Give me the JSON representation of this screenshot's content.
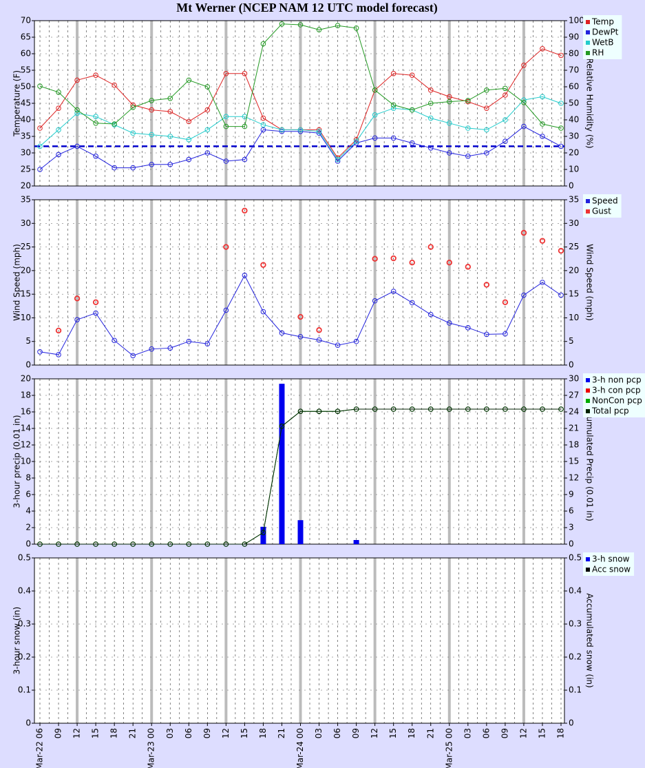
{
  "chart_data": [
    {
      "type": "line",
      "title": "Mt Werner (NCEP NAM 12 UTC model forecast)",
      "ylabel": "Temperature (F)",
      "y2label": "Relative Humidity (%)",
      "ylim": [
        20,
        70
      ],
      "yticks": [
        20,
        25,
        30,
        35,
        40,
        45,
        50,
        55,
        60,
        65,
        70
      ],
      "y2lim": [
        0,
        100
      ],
      "y2ticks": [
        0,
        10,
        20,
        30,
        40,
        50,
        60,
        70,
        80,
        90,
        100
      ],
      "reference_line": {
        "value": 32,
        "color": "#0000cc"
      },
      "series": [
        {
          "name": "Temp",
          "color": "#dd2222",
          "mark": "line",
          "values": [
            37.5,
            43.5,
            52,
            53.5,
            50.5,
            44.5,
            43,
            42.5,
            39.5,
            43,
            54,
            54,
            40.5,
            37,
            37,
            37,
            28.5,
            34,
            49,
            54,
            53.5,
            49,
            47,
            45.5,
            43.5,
            47.5,
            56.5,
            61.5,
            59.5
          ]
        },
        {
          "name": "DewPt",
          "color": "#2222dd",
          "mark": "line",
          "values": [
            25,
            29.5,
            32,
            29,
            25.5,
            25.5,
            26.5,
            26.5,
            28,
            30,
            27.5,
            28,
            37,
            36.5,
            36.5,
            36,
            27.5,
            33,
            34.5,
            34.5,
            33,
            31.5,
            30,
            29,
            30,
            33.5,
            38,
            35,
            32
          ]
        },
        {
          "name": "WetB",
          "color": "#22cccc",
          "mark": "line",
          "values": [
            32,
            37,
            42,
            41,
            38.5,
            36,
            35.5,
            35,
            34,
            37,
            41,
            41,
            38.5,
            37,
            37,
            36.5,
            28,
            33.5,
            41.5,
            43.5,
            43,
            40.5,
            39,
            37.5,
            37,
            40,
            46,
            47,
            45
          ]
        },
        {
          "name": "RH",
          "color": "#229922",
          "mark": "line",
          "axis": "y2",
          "values": [
            60.4,
            56.7,
            46,
            38,
            37.5,
            47.5,
            51.7,
            53,
            64,
            60,
            36,
            36,
            86,
            98,
            97.5,
            94.5,
            97,
            95.5,
            58,
            49,
            46,
            50,
            51,
            51.7,
            58,
            59,
            50.5,
            37.5,
            35
          ]
        }
      ]
    },
    {
      "type": "line",
      "ylabel": "Wind Speed (mph)",
      "y2label": "Wind Speed (mph)",
      "ylim": [
        0,
        35
      ],
      "yticks": [
        0,
        5,
        10,
        15,
        20,
        25,
        30,
        35
      ],
      "y2lim": [
        0,
        35
      ],
      "y2ticks": [
        0,
        5,
        10,
        15,
        20,
        25,
        30,
        35
      ],
      "series": [
        {
          "name": "Speed",
          "color": "#2222dd",
          "mark": "line",
          "values": [
            2.8,
            2.2,
            9.6,
            11,
            5.2,
            2,
            3.4,
            3.6,
            5,
            4.5,
            11.6,
            19,
            11.3,
            6.8,
            6,
            5.3,
            4.2,
            5,
            13.6,
            15.6,
            13.2,
            10.7,
            8.9,
            7.9,
            6.5,
            6.6,
            14.8,
            17.5,
            14.8
          ]
        },
        {
          "name": "Gust",
          "color": "#ee3333",
          "mark": "points",
          "values": [
            null,
            7.3,
            14.1,
            13.3,
            null,
            null,
            null,
            null,
            null,
            null,
            25,
            32.7,
            21.2,
            null,
            10.2,
            7.4,
            null,
            null,
            22.5,
            22.6,
            21.7,
            25,
            21.7,
            20.8,
            17,
            13.3,
            28,
            26.3,
            24.2
          ]
        }
      ]
    },
    {
      "type": "bar",
      "ylabel": "3-hour precip (0.01 in)",
      "y2label": "Accumulated Precip (0.01 in)",
      "ylim": [
        0,
        20
      ],
      "yticks": [
        0,
        2,
        4,
        6,
        8,
        10,
        12,
        14,
        16,
        18,
        20
      ],
      "y2lim": [
        0,
        30
      ],
      "y2ticks": [
        0,
        3,
        6,
        9,
        12,
        15,
        18,
        21,
        24,
        27,
        30
      ],
      "series": [
        {
          "name": "3-h non pcp",
          "color": "#0000ee",
          "mark": "bar",
          "values": [
            0,
            0,
            0,
            0,
            0,
            0,
            0,
            0,
            0,
            0,
            0,
            0,
            2.1,
            19.4,
            2.9,
            0,
            0,
            0.5,
            0,
            0,
            0,
            0,
            0,
            0,
            0,
            0,
            0,
            0,
            0
          ]
        },
        {
          "name": "3-h con pcp",
          "color": "#ee0000",
          "mark": "bar",
          "values": [
            0,
            0,
            0,
            0,
            0,
            0,
            0,
            0,
            0,
            0,
            0,
            0,
            0,
            0,
            0,
            0,
            0,
            0,
            0,
            0,
            0,
            0,
            0,
            0,
            0,
            0,
            0,
            0,
            0
          ]
        },
        {
          "name": "NonCon pcp",
          "color": "#00aa00",
          "mark": "line",
          "axis": "y2",
          "values": [
            0,
            0,
            0,
            0,
            0,
            0,
            0,
            0,
            0,
            0,
            0,
            0,
            2.1,
            21.4,
            24.1,
            24.1,
            24.1,
            24.5,
            24.5,
            24.5,
            24.5,
            24.5,
            24.5,
            24.5,
            24.5,
            24.5,
            24.5,
            24.5,
            24.5
          ]
        },
        {
          "name": "Total pcp",
          "color": "#002200",
          "mark": "line",
          "axis": "y2",
          "values": [
            0,
            0,
            0,
            0,
            0,
            0,
            0,
            0,
            0,
            0,
            0,
            0,
            2.1,
            21.4,
            24.1,
            24.1,
            24.1,
            24.5,
            24.5,
            24.5,
            24.5,
            24.5,
            24.5,
            24.5,
            24.5,
            24.5,
            24.5,
            24.5,
            24.5
          ]
        }
      ]
    },
    {
      "type": "bar",
      "ylabel": "3-hour snow (in)",
      "y2label": "Accumulated snow (in)",
      "ylim": [
        0,
        0.5
      ],
      "yticks": [
        0,
        0.1,
        0.2,
        0.3,
        0.4,
        0.5
      ],
      "y2lim": [
        0,
        0.5
      ],
      "y2ticks": [
        0,
        0.1,
        0.2,
        0.3,
        0.4,
        0.5
      ],
      "categories": [
        "Mar-22 06",
        "09",
        "12",
        "15",
        "18",
        "21",
        "Mar-23 00",
        "03",
        "06",
        "09",
        "12",
        "15",
        "18",
        "21",
        "Mar-24 00",
        "03",
        "06",
        "09",
        "12",
        "15",
        "18",
        "21",
        "Mar-25 00",
        "03",
        "06",
        "09",
        "12",
        "15",
        "18"
      ],
      "series": [
        {
          "name": "3-h snow",
          "color": "#0000ee",
          "mark": "bar",
          "values": [
            0,
            0,
            0,
            0,
            0,
            0,
            0,
            0,
            0,
            0,
            0,
            0,
            0,
            0,
            0,
            0,
            0,
            0,
            0,
            0,
            0,
            0,
            0,
            0,
            0,
            0,
            0,
            0,
            0
          ]
        },
        {
          "name": "Acc snow",
          "color": "#000000",
          "mark": "plainline",
          "axis": "y2",
          "values": [
            0,
            0,
            0,
            0,
            0,
            0,
            0,
            0,
            0,
            0,
            0,
            0,
            0,
            0,
            0,
            0,
            0,
            0,
            0,
            0,
            0,
            0,
            0,
            0,
            0,
            0,
            0,
            0,
            0
          ]
        }
      ]
    }
  ]
}
